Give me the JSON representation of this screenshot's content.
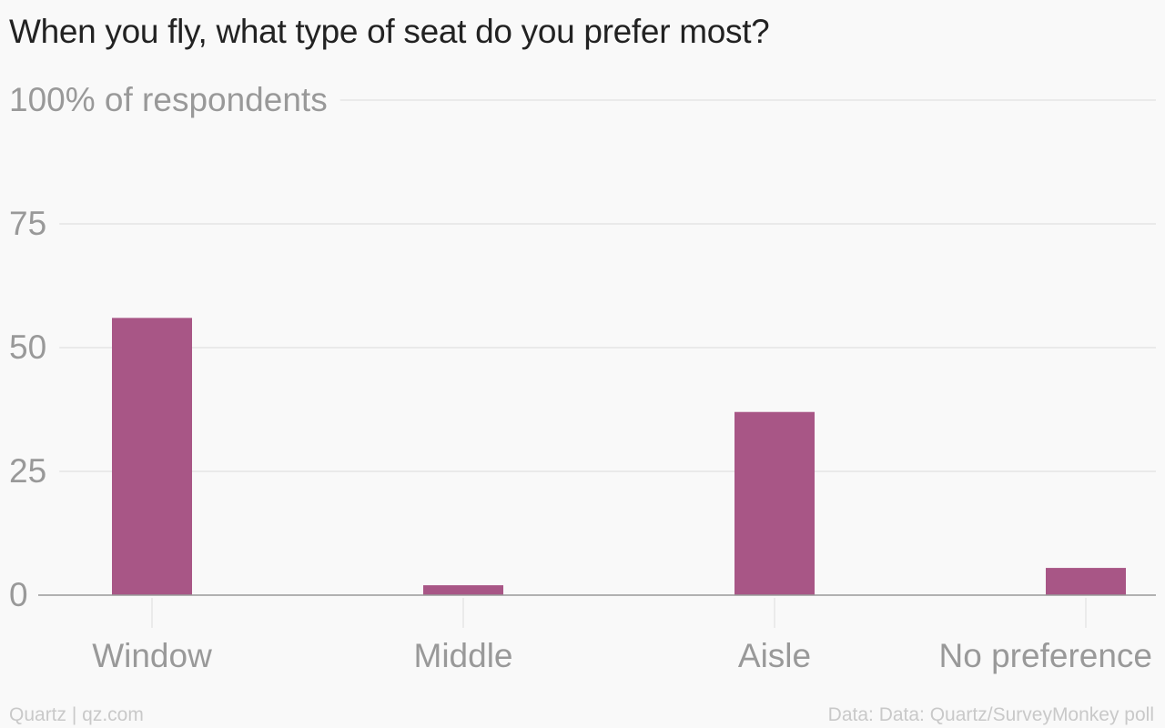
{
  "title": "When you fly, what type of seat do you prefer most?",
  "footer": {
    "credit": "Quartz | qz.com",
    "source": "Data: Data: Quartz/SurveyMonkey poll"
  },
  "colors": {
    "bar": "#a85686",
    "grid": "#e6e6e6",
    "axis_text": "#999999",
    "baseline": "#999999",
    "background": "#f9f9f9"
  },
  "chart_data": {
    "type": "bar",
    "categories": [
      "Window",
      "Middle",
      "Aisle",
      "No preference"
    ],
    "values": [
      56,
      2,
      37,
      5.5
    ],
    "ylabel": "",
    "xlabel": "",
    "ylim": [
      0,
      100
    ],
    "yticks": [
      0,
      25,
      50,
      75,
      100
    ],
    "ytick_labels": [
      "0",
      "25",
      "50",
      "75",
      "100% of respondents"
    ],
    "grid": true,
    "legend": "none"
  }
}
